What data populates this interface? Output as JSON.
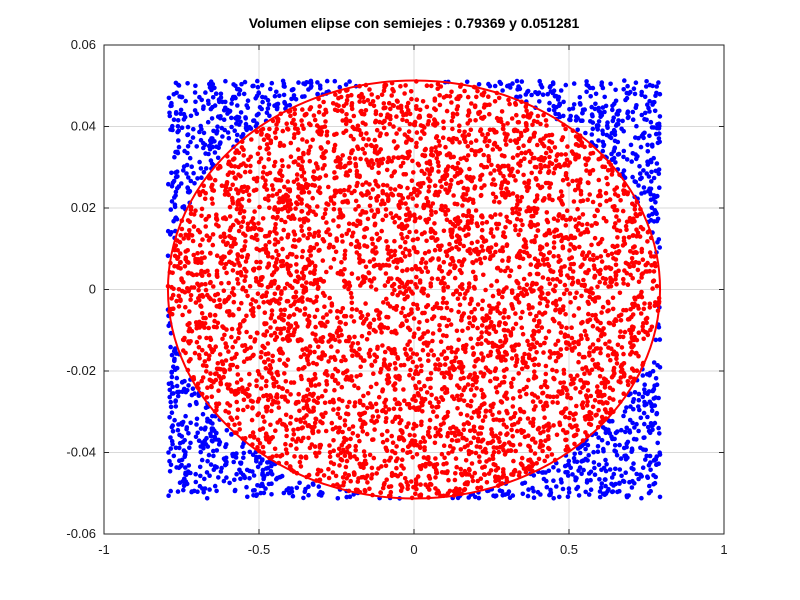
{
  "chart_data": {
    "type": "scatter",
    "title": "Volumen elipse con semiejes : 0.79369 y 0.051281",
    "xlabel": "",
    "ylabel": "",
    "xlim": [
      -1,
      1
    ],
    "ylim": [
      -0.06,
      0.06
    ],
    "x_ticks": [
      -1,
      -0.5,
      0,
      0.5,
      1
    ],
    "x_tick_labels": [
      "-1",
      "-0.5",
      "0",
      "0.5",
      "1"
    ],
    "y_ticks": [
      -0.06,
      -0.04,
      -0.02,
      0,
      0.02,
      0.04,
      0.06
    ],
    "y_tick_labels": [
      "-0.06",
      "-0.04",
      "-0.02",
      "0",
      "0.02",
      "0.04",
      "0.06"
    ],
    "grid": true,
    "ellipse": {
      "a": 0.79369,
      "b": 0.051281,
      "color": "#ff0000"
    },
    "sampling_box": {
      "x": [
        -0.79369,
        0.79369
      ],
      "y": [
        -0.051281,
        0.051281
      ]
    },
    "approx_point_count": 6000,
    "series": [
      {
        "points": "inside ellipse",
        "color": "#ff0000"
      },
      {
        "points": "outside ellipse",
        "color": "#0000ff"
      }
    ],
    "colors": {
      "inside": "#ff0000",
      "outside": "#0000ff",
      "grid": "#d9d9d9",
      "axes": "#262626"
    }
  }
}
